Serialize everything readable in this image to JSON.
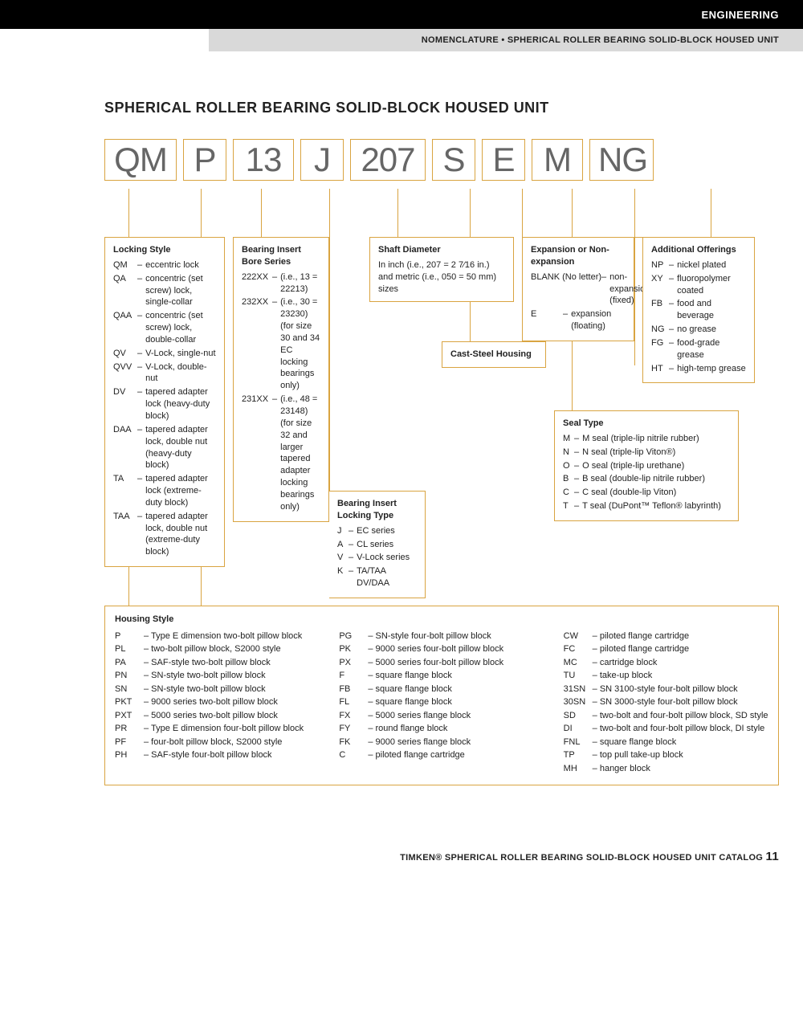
{
  "header": {
    "section": "ENGINEERING",
    "breadcrumb": "NOMENCLATURE • SPHERICAL ROLLER BEARING SOLID-BLOCK HOUSED UNIT"
  },
  "title": "SPHERICAL ROLLER BEARING SOLID-BLOCK HOUSED UNIT",
  "code_parts": [
    "QM",
    "P",
    "13",
    "J",
    "207",
    "S",
    "E",
    "M",
    "NG"
  ],
  "locking_style": {
    "title": "Locking Style",
    "items": [
      {
        "c": "QM",
        "d": "eccentric lock"
      },
      {
        "c": "QA",
        "d": "concentric (set screw) lock, single-collar"
      },
      {
        "c": "QAA",
        "d": "concentric (set screw) lock, double-collar"
      },
      {
        "c": "QV",
        "d": "V-Lock, single-nut"
      },
      {
        "c": "QVV",
        "d": "V-Lock, double-nut"
      },
      {
        "c": "DV",
        "d": "tapered adapter lock (heavy-duty block)"
      },
      {
        "c": "DAA",
        "d": "tapered adapter lock, double nut (heavy-duty block)"
      },
      {
        "c": "TA",
        "d": "tapered adapter lock (extreme-duty block)"
      },
      {
        "c": "TAA",
        "d": "tapered adapter lock, double nut (extreme-duty block)"
      }
    ]
  },
  "bore_series": {
    "title": "Bearing Insert Bore Series",
    "items": [
      {
        "c": "222XX",
        "d": "(i.e., 13 = 22213)"
      },
      {
        "c": "232XX",
        "d": "(i.e., 30 = 23230) (for size 30 and 34 EC locking bearings only)"
      },
      {
        "c": "231XX",
        "d": "(i.e., 48 = 23148) (for size 32 and larger tapered adapter locking bearings only)"
      }
    ]
  },
  "locking_type": {
    "title": "Bearing Insert Locking Type",
    "items": [
      {
        "c": "J",
        "d": "EC series"
      },
      {
        "c": "A",
        "d": "CL series"
      },
      {
        "c": "V",
        "d": "V-Lock series"
      },
      {
        "c": "K",
        "d": "TA/TAA DV/DAA"
      }
    ]
  },
  "shaft_diameter": {
    "title": "Shaft Diameter",
    "text": "In inch (i.e., 207 = 2 7⁄16 in.) and metric (i.e., 050 = 50 mm) sizes"
  },
  "cast_steel": {
    "title": "Cast-Steel Housing"
  },
  "expansion": {
    "title": "Expansion or Non-expansion",
    "items": [
      {
        "c": "BLANK (No letter)",
        "d": "non-expansion (fixed)"
      },
      {
        "c": "E",
        "d": "expansion (floating)"
      }
    ]
  },
  "seal_type": {
    "title": "Seal Type",
    "items": [
      {
        "c": "M",
        "d": "M seal (triple-lip nitrile rubber)"
      },
      {
        "c": "N",
        "d": "N seal (triple-lip Viton®)"
      },
      {
        "c": "O",
        "d": "O seal (triple-lip urethane)"
      },
      {
        "c": "B",
        "d": "B seal (double-lip nitrile rubber)"
      },
      {
        "c": "C",
        "d": "C seal (double-lip Viton)"
      },
      {
        "c": "T",
        "d": "T seal (DuPont™ Teflon® labyrinth)"
      }
    ]
  },
  "additional": {
    "title": "Additional Offerings",
    "items": [
      {
        "c": "NP",
        "d": "nickel plated"
      },
      {
        "c": "XY",
        "d": "fluoropolymer coated"
      },
      {
        "c": "FB",
        "d": "food and beverage"
      },
      {
        "c": "NG",
        "d": "no grease"
      },
      {
        "c": "FG",
        "d": "food-grade grease"
      },
      {
        "c": "HT",
        "d": "high-temp grease"
      }
    ]
  },
  "housing": {
    "title": "Housing Style",
    "col1": [
      {
        "c": "P",
        "d": "Type E dimension two-bolt pillow block"
      },
      {
        "c": "PL",
        "d": "two-bolt pillow block, S2000 style"
      },
      {
        "c": "PA",
        "d": "SAF-style two-bolt pillow block"
      },
      {
        "c": "PN",
        "d": "SN-style two-bolt pillow block"
      },
      {
        "c": "SN",
        "d": "SN-style two-bolt pillow block"
      },
      {
        "c": "PKT",
        "d": "9000 series two-bolt pillow block"
      },
      {
        "c": "PXT",
        "d": "5000 series two-bolt pillow block"
      },
      {
        "c": "PR",
        "d": "Type E dimension four-bolt pillow block"
      },
      {
        "c": "PF",
        "d": "four-bolt pillow block, S2000 style"
      },
      {
        "c": "PH",
        "d": "SAF-style four-bolt pillow block"
      }
    ],
    "col2": [
      {
        "c": "PG",
        "d": "SN-style four-bolt pillow block"
      },
      {
        "c": "PK",
        "d": "9000 series four-bolt pillow block"
      },
      {
        "c": "PX",
        "d": "5000 series four-bolt pillow block"
      },
      {
        "c": "F",
        "d": "square flange block"
      },
      {
        "c": "FB",
        "d": "square flange block"
      },
      {
        "c": "FL",
        "d": "square flange block"
      },
      {
        "c": "FX",
        "d": "5000 series flange block"
      },
      {
        "c": "FY",
        "d": "round flange block"
      },
      {
        "c": "FK",
        "d": "9000 series flange block"
      },
      {
        "c": "C",
        "d": "piloted flange cartridge"
      }
    ],
    "col3": [
      {
        "c": "CW",
        "d": "piloted flange cartridge"
      },
      {
        "c": "FC",
        "d": "piloted flange cartridge"
      },
      {
        "c": "MC",
        "d": "cartridge block"
      },
      {
        "c": "TU",
        "d": "take-up block"
      },
      {
        "c": "31SN",
        "d": "SN 3100-style four-bolt pillow block"
      },
      {
        "c": "30SN",
        "d": "SN 3000-style four-bolt pillow block"
      },
      {
        "c": "SD",
        "d": "two-bolt and four-bolt pillow block, SD style"
      },
      {
        "c": "DI",
        "d": "two-bolt and four-bolt pillow block, DI style"
      },
      {
        "c": "FNL",
        "d": "square flange block"
      },
      {
        "c": "TP",
        "d": "top pull take-up block"
      },
      {
        "c": "MH",
        "d": "hanger block"
      }
    ]
  },
  "footer": {
    "text": "TIMKEN® SPHERICAL ROLLER BEARING SOLID-BLOCK HOUSED UNIT CATALOG",
    "page": "11"
  },
  "colors": {
    "outline": "#d9a441",
    "code_text": "#666666"
  }
}
